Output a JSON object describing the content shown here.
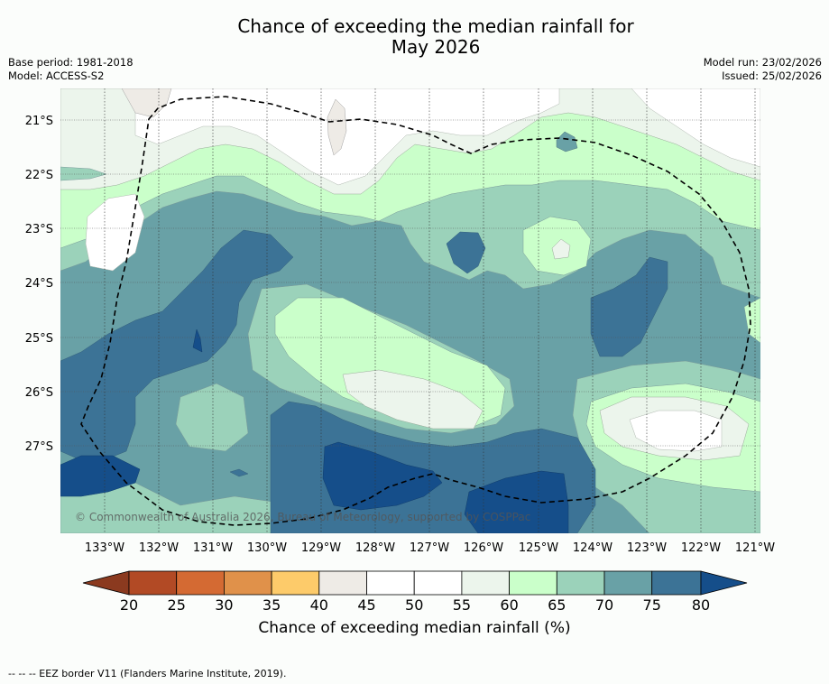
{
  "title": {
    "line1": "Chance of exceeding the median rainfall for",
    "line2": "May 2026"
  },
  "meta": {
    "base_period": "Base period: 1981-2018",
    "model": "Model: ACCESS-S2",
    "model_run": "Model run: 23/02/2026",
    "issued": "Issued: 25/02/2026"
  },
  "map": {
    "lat_labels": [
      "21°S",
      "22°S",
      "23°S",
      "24°S",
      "25°S",
      "26°S",
      "27°S"
    ],
    "lon_labels": [
      "133°W",
      "132°W",
      "131°W",
      "130°W",
      "129°W",
      "128°W",
      "127°W",
      "126°W",
      "125°W",
      "124°W",
      "123°W",
      "122°W",
      "121°W"
    ],
    "copyright": "© Commonwealth of Australia 2026, Bureau of Meteorology, supported by COSPPac",
    "colors": {
      "c20": "#8b3a1f",
      "c25": "#b24a25",
      "c30": "#d46a33",
      "c35": "#e0914a",
      "c40": "#fdcb6a",
      "c45": "#eeebe6",
      "c50": "#ffffff",
      "c55": "#ffffff",
      "c60": "#ecf5ec",
      "c65": "#caffca",
      "c70": "#9bd2ba",
      "c75": "#69a1a6",
      "c80": "#3c7396",
      "c85": "#154e8a"
    }
  },
  "colorbar": {
    "ticks": [
      "20",
      "25",
      "30",
      "35",
      "40",
      "45",
      "50",
      "55",
      "60",
      "65",
      "70",
      "75",
      "80"
    ],
    "label": "Chance of exceeding median rainfall (%)"
  },
  "footnote": "-- -- -- EEZ border V11 (Flanders Marine Institute, 2019)."
}
